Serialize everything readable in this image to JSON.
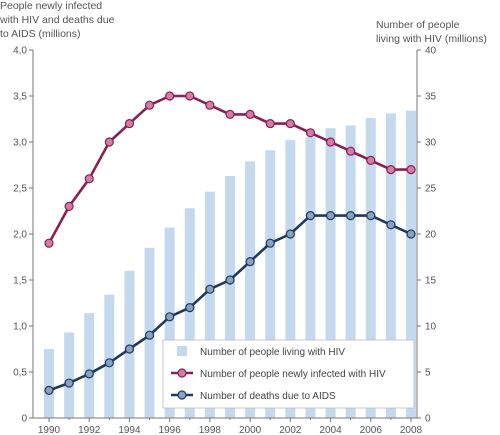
{
  "chart_data": {
    "type": "bar+line",
    "y_left_title": [
      "People newly infected",
      "with HIV and deaths due",
      "to AIDS (millions)"
    ],
    "y_right_title": [
      "Number of people",
      "living with HIV (millions)"
    ],
    "x": [
      1990,
      1991,
      1992,
      1993,
      1994,
      1995,
      1996,
      1997,
      1998,
      1999,
      2000,
      2001,
      2002,
      2003,
      2004,
      2005,
      2006,
      2007,
      2008
    ],
    "x_ticks": [
      "1990",
      "1992",
      "1994",
      "1996",
      "1998",
      "2000",
      "2002",
      "2004",
      "2006",
      "2008"
    ],
    "y_left_ticks": [
      "0",
      "0,5",
      "1,0",
      "1,5",
      "2,0",
      "2,5",
      "3,0",
      "3,5",
      "4,0"
    ],
    "y_right_ticks": [
      "0",
      "5",
      "10",
      "15",
      "20",
      "25",
      "30",
      "35",
      "40"
    ],
    "y_left_range": [
      0,
      4
    ],
    "y_right_range": [
      0,
      40
    ],
    "grid": false,
    "legend_position": "bottom-right",
    "series": [
      {
        "name": "Number of people living with HIV",
        "kind": "bar",
        "axis": "right",
        "color": "#c5d9ee",
        "values": [
          7.5,
          9.3,
          11.4,
          13.4,
          16.0,
          18.5,
          20.7,
          22.8,
          24.6,
          26.3,
          27.9,
          29.1,
          30.2,
          30.5,
          31.5,
          31.8,
          32.6,
          33.1,
          33.4
        ]
      },
      {
        "name": "Number of people newly infected with HIV",
        "kind": "line",
        "axis": "left",
        "color": "#8b1e55",
        "marker_fill": "#d07fa3",
        "values": [
          1.9,
          2.3,
          2.6,
          3.0,
          3.2,
          3.4,
          3.5,
          3.5,
          3.4,
          3.3,
          3.3,
          3.2,
          3.2,
          3.1,
          3.0,
          2.9,
          2.8,
          2.7,
          2.7
        ]
      },
      {
        "name": "Number of deaths due to AIDS",
        "kind": "line",
        "axis": "left",
        "color": "#1e3a5f",
        "marker_fill": "#8aa2bf",
        "values": [
          0.3,
          0.38,
          0.48,
          0.6,
          0.75,
          0.9,
          1.1,
          1.2,
          1.4,
          1.5,
          1.7,
          1.9,
          2.0,
          2.2,
          2.2,
          2.2,
          2.2,
          2.1,
          2.0
        ]
      }
    ]
  }
}
